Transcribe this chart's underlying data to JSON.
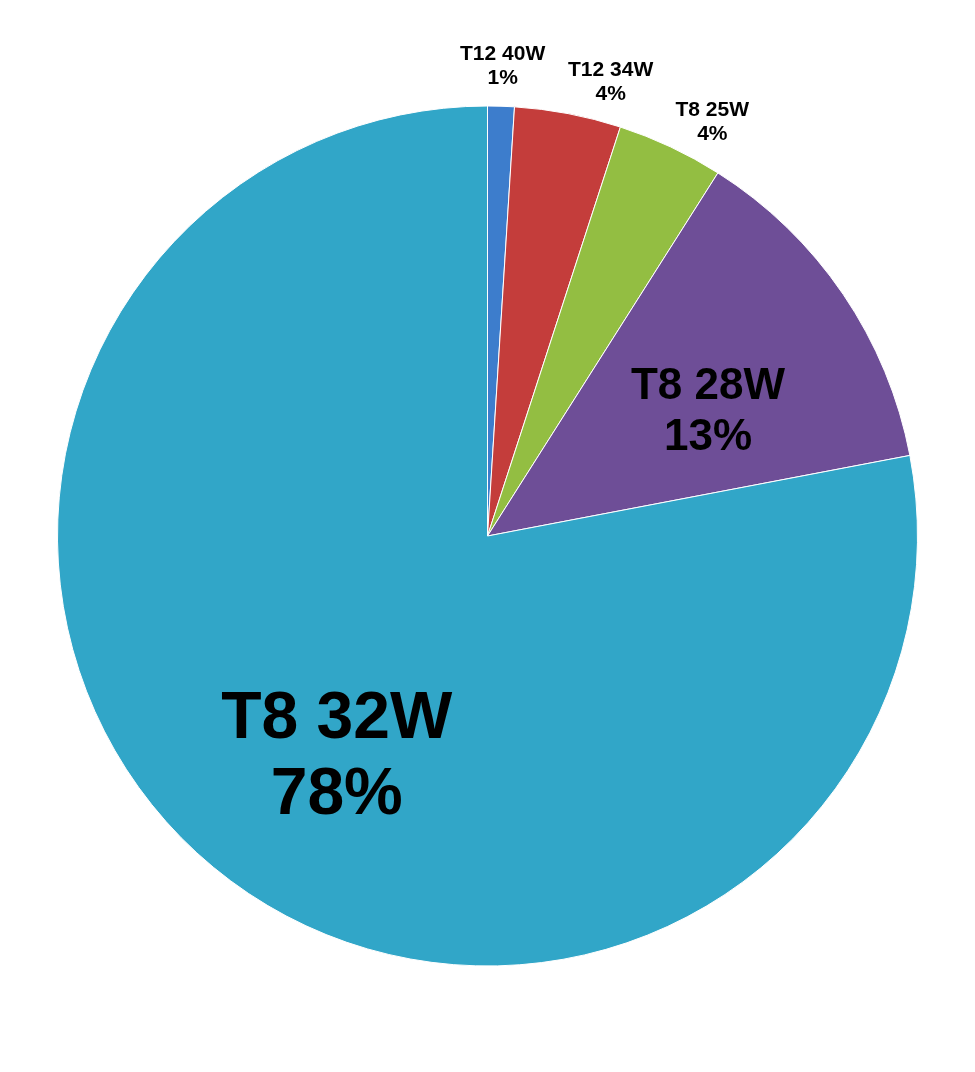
{
  "chart_data": {
    "type": "pie",
    "categories": [
      "T12 40W",
      "T12 34W",
      "T8 25W",
      "T8 28W",
      "T8 32W"
    ],
    "values": [
      1,
      4,
      4,
      13,
      78
    ],
    "value_labels": [
      "1%",
      "4%",
      "4%",
      "13%",
      "78%"
    ],
    "colors": [
      "#3d7dcc",
      "#c43d3b",
      "#93be42",
      "#6e4e97",
      "#31a6c8"
    ]
  }
}
